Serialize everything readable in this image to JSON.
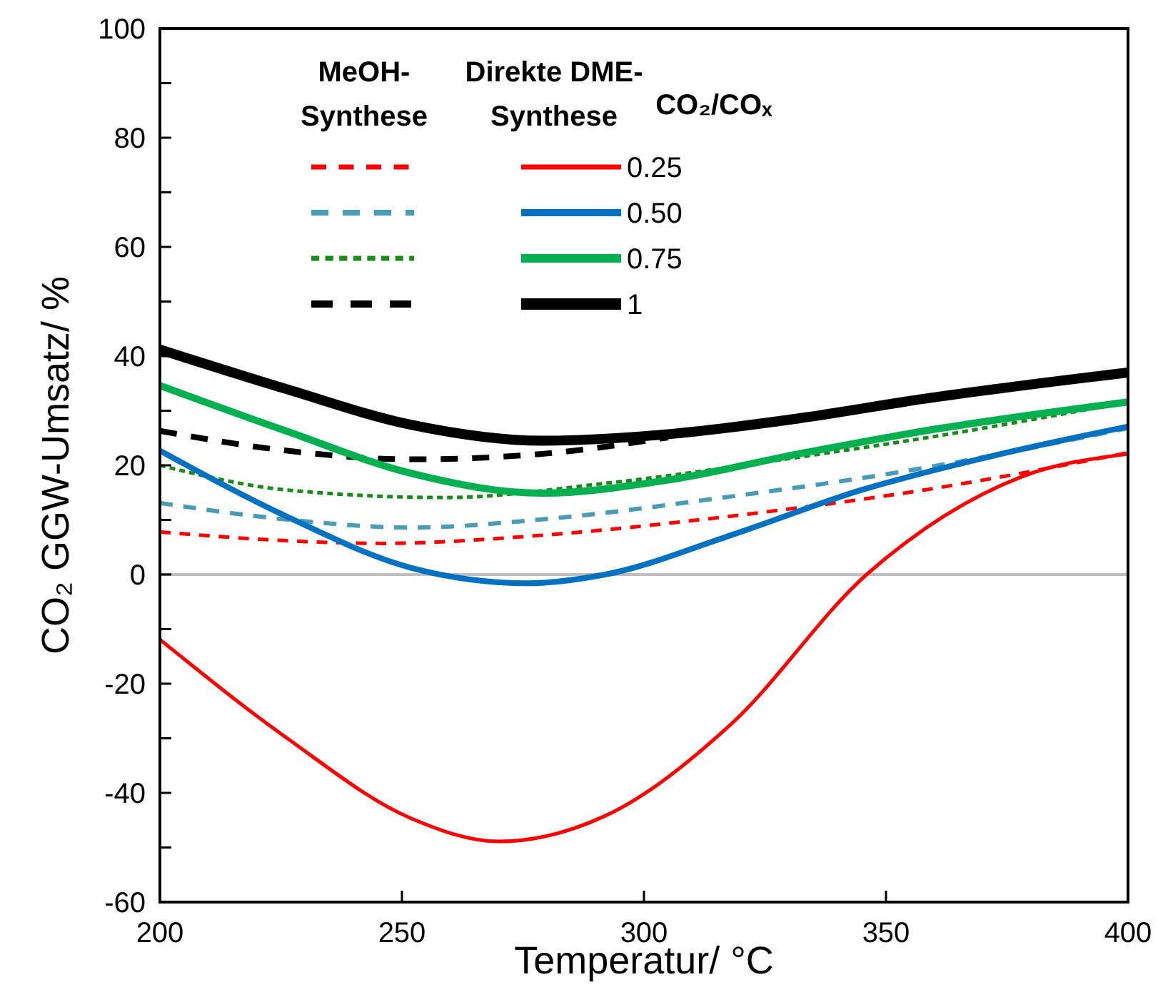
{
  "chart_data": {
    "type": "line",
    "xlabel": "Temperatur/ °C",
    "ylabel": "CO₂ GGW-Umsatz/ %",
    "legend_title": "CO₂/COₓ",
    "annotations": [
      "MeOH-\nSynthese",
      "Direkte DME-\nSynthese"
    ],
    "xlim": [
      200,
      400
    ],
    "xticks": [
      200,
      250,
      300,
      350,
      400
    ],
    "ylim": [
      -60,
      100
    ],
    "yticks": [
      -60,
      {
        "value": -50,
        "label": null
      },
      -40,
      {
        "value": -30,
        "label": null
      },
      -20,
      {
        "value": -10,
        "label": null
      },
      0,
      {
        "value": 10,
        "label": null
      },
      20,
      {
        "value": 30,
        "label": null
      },
      40,
      {
        "value": 50,
        "label": null
      },
      60,
      {
        "value": 70,
        "label": null
      },
      80,
      {
        "value": 90,
        "label": null
      },
      100
    ],
    "grid": false,
    "legend": "top",
    "marker": "none",
    "ref_lines": [
      {
        "axis": "y",
        "value": 0,
        "color": "#bfbfbf"
      }
    ],
    "series": [
      {
        "color": "#ff0000",
        "line_style": "dashed",
        "x": [
          200,
          226,
          246,
          279,
          318,
          358,
          400
        ],
        "values": [
          7.8,
          6.2,
          5.7,
          7.2,
          10.7,
          15.5,
          22.3
        ]
      },
      {
        "color": "#4a9bb5",
        "line_style": "dashed",
        "x": [
          200,
          226,
          252,
          279,
          318,
          351,
          400
        ],
        "values": [
          13.1,
          10.1,
          8.6,
          10.1,
          14.3,
          18.5,
          26.8
        ]
      },
      {
        "color": "#1a8a1a",
        "line_style": "dotted",
        "x": [
          200,
          226,
          259,
          292,
          332,
          358,
          400
        ],
        "values": [
          20,
          15.5,
          14.1,
          16.7,
          21.5,
          25,
          31.6
        ]
      },
      {
        "color": "#000000",
        "line_style": "dashed",
        "x": [
          200,
          226,
          252,
          279,
          305
        ],
        "values": [
          26.3,
          22.7,
          21.1,
          22.1,
          25.1
        ]
      },
      {
        "name": "0.25",
        "color": "#ff0000",
        "line_style": "solid",
        "x": [
          200,
          226,
          252,
          270,
          292,
          318,
          346,
          362,
          378,
          400
        ],
        "values": [
          -11.9,
          -29.8,
          -44.7,
          -48.9,
          -44.2,
          -27.4,
          0,
          10.7,
          17.9,
          22.1
        ]
      },
      {
        "name": "0.50",
        "color": "#0070c0",
        "line_style": "solid",
        "x": [
          200,
          226,
          252,
          276,
          292,
          318,
          345,
          371,
          400
        ],
        "values": [
          22.7,
          10.7,
          1.2,
          -1.6,
          0,
          7.2,
          15.5,
          21.5,
          27.1
        ]
      },
      {
        "name": "0.75",
        "color": "#00b050",
        "line_style": "solid",
        "x": [
          200,
          226,
          252,
          279,
          305,
          332,
          358,
          400
        ],
        "values": [
          34.6,
          26.3,
          18.5,
          14.9,
          17.3,
          22.1,
          26.3,
          31.6
        ]
      },
      {
        "name": "1",
        "color": "#000000",
        "line_style": "solid",
        "x": [
          200,
          226,
          252,
          279,
          305,
          332,
          358,
          400
        ],
        "values": [
          41.2,
          34,
          27.4,
          24.5,
          25.7,
          28.6,
          32.2,
          37
        ]
      }
    ]
  }
}
